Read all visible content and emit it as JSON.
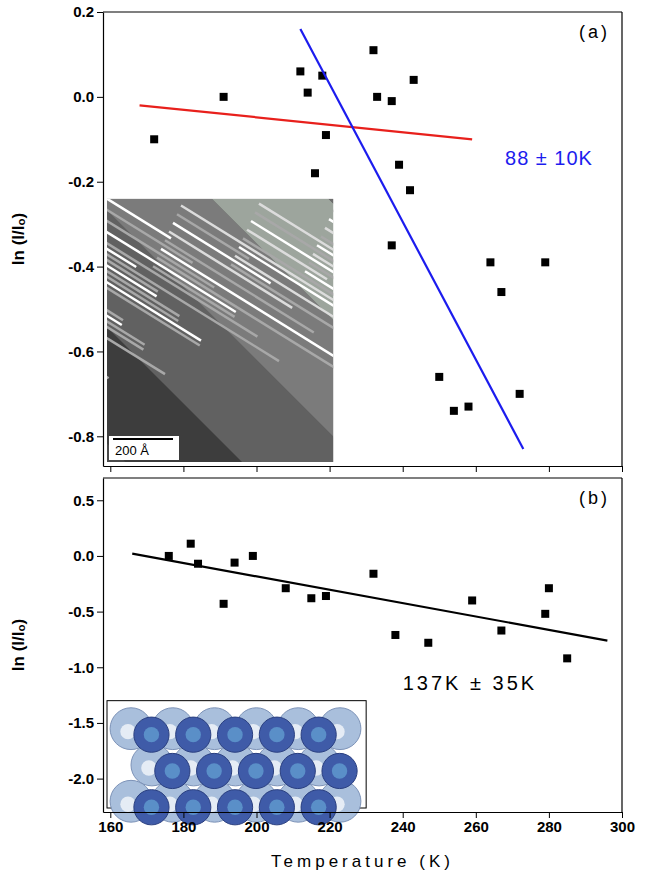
{
  "chart_data": [
    {
      "type": "scatter",
      "panel": "(a)",
      "y_label": "ln (I/Iₒ)",
      "xlim": [
        158,
        300
      ],
      "xticks": [
        160,
        180,
        200,
        220,
        240,
        260,
        280,
        300
      ],
      "ylim": [
        -0.87,
        0.2
      ],
      "yticks": [
        -0.8,
        -0.6,
        -0.4,
        -0.2,
        {
          "value": 0,
          "label": "0.0"
        },
        0.2
      ],
      "tick_labels": "y",
      "series": [
        {
          "type": "scatter",
          "color": "#000000",
          "marker": "square",
          "x": [
            172,
            191,
            212,
            214,
            216,
            218,
            219,
            232,
            233,
            237,
            237,
            239,
            242,
            243,
            250,
            254,
            258,
            264,
            267,
            272,
            279
          ],
          "values": [
            -0.1,
            0.0,
            0.06,
            0.01,
            -0.18,
            0.05,
            -0.09,
            0.11,
            0.0,
            -0.01,
            -0.35,
            -0.16,
            -0.22,
            0.04,
            -0.66,
            -0.74,
            -0.73,
            -0.39,
            -0.46,
            -0.7,
            -0.39
          ]
        },
        {
          "type": "line",
          "color": "#e8201c",
          "x": [
            168,
            259
          ],
          "values": [
            -0.02,
            -0.1
          ]
        },
        {
          "type": "line",
          "color": "#1c1cee",
          "x": [
            212,
            273
          ],
          "values": [
            0.16,
            -0.83
          ]
        }
      ],
      "annotations": [
        {
          "text": "88 ± 10K",
          "color": "#1c1cee"
        }
      ],
      "inset_label": "200 Å"
    },
    {
      "type": "scatter",
      "panel": "(b)",
      "y_label": "ln (I/Iₒ)",
      "x_label": "Temperature (K)",
      "xlim": [
        158,
        300
      ],
      "xticks": [
        160,
        180,
        200,
        220,
        240,
        260,
        280,
        300
      ],
      "ylim": [
        -2.3,
        0.7
      ],
      "yticks": [
        {
          "value": -2,
          "label": "-2.0"
        },
        -1.5,
        {
          "value": -1,
          "label": "-1.0"
        },
        -0.5,
        {
          "value": 0,
          "label": "0.0"
        },
        0.5
      ],
      "series": [
        {
          "type": "scatter",
          "color": "#000000",
          "marker": "square",
          "x": [
            176,
            182,
            184,
            191,
            194,
            199,
            208,
            215,
            219,
            232,
            238,
            247,
            259,
            267,
            279,
            280,
            285
          ],
          "values": [
            0.0,
            0.11,
            -0.07,
            -0.43,
            -0.06,
            0.0,
            -0.29,
            -0.38,
            -0.36,
            -0.16,
            -0.71,
            -0.78,
            -0.4,
            -0.67,
            -0.52,
            -0.29,
            -0.92
          ]
        },
        {
          "type": "line",
          "color": "#000000",
          "x": [
            166,
            296
          ],
          "values": [
            0.02,
            -0.76
          ]
        }
      ],
      "annotations": [
        {
          "text": "137K ± 35K",
          "color": "#000000"
        }
      ]
    }
  ]
}
